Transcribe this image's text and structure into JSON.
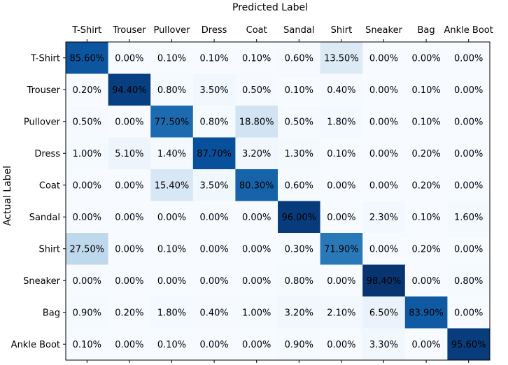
{
  "chart_data": {
    "type": "heatmap",
    "title": "Predicted Label",
    "xlabel": "Predicted Label",
    "ylabel": "Actual Label",
    "x_categories": [
      "T-Shirt",
      "Trouser",
      "Pullover",
      "Dress",
      "Coat",
      "Sandal",
      "Shirt",
      "Sneaker",
      "Bag",
      "Ankle Boot"
    ],
    "y_categories": [
      "T-Shirt",
      "Trouser",
      "Pullover",
      "Dress",
      "Coat",
      "Sandal",
      "Shirt",
      "Sneaker",
      "Bag",
      "Ankle Boot"
    ],
    "values": [
      [
        85.6,
        0.0,
        0.1,
        0.1,
        0.1,
        0.6,
        13.5,
        0.0,
        0.0,
        0.0
      ],
      [
        0.2,
        94.4,
        0.8,
        3.5,
        0.5,
        0.1,
        0.4,
        0.0,
        0.1,
        0.0
      ],
      [
        0.5,
        0.0,
        77.5,
        0.8,
        18.8,
        0.5,
        1.8,
        0.0,
        0.1,
        0.0
      ],
      [
        1.0,
        5.1,
        1.4,
        87.7,
        3.2,
        1.3,
        0.1,
        0.0,
        0.2,
        0.0
      ],
      [
        0.0,
        0.0,
        15.4,
        3.5,
        80.3,
        0.6,
        0.0,
        0.0,
        0.2,
        0.0
      ],
      [
        0.0,
        0.0,
        0.0,
        0.0,
        0.0,
        96.0,
        0.0,
        2.3,
        0.1,
        1.6
      ],
      [
        27.5,
        0.0,
        0.1,
        0.0,
        0.0,
        0.3,
        71.9,
        0.0,
        0.2,
        0.0
      ],
      [
        0.0,
        0.0,
        0.0,
        0.0,
        0.0,
        0.8,
        0.0,
        98.4,
        0.0,
        0.8
      ],
      [
        0.9,
        0.2,
        1.8,
        0.4,
        1.0,
        3.2,
        2.1,
        6.5,
        83.9,
        0.0
      ],
      [
        0.1,
        0.0,
        0.1,
        0.0,
        0.0,
        0.9,
        0.0,
        3.3,
        0.0,
        95.6
      ]
    ],
    "cell_labels": [
      [
        "85.60%",
        "0.00%",
        "0.10%",
        "0.10%",
        "0.10%",
        "0.60%",
        "13.50%",
        "0.00%",
        "0.00%",
        "0.00%"
      ],
      [
        "0.20%",
        "94.40%",
        "0.80%",
        "3.50%",
        "0.50%",
        "0.10%",
        "0.40%",
        "0.00%",
        "0.10%",
        "0.00%"
      ],
      [
        "0.50%",
        "0.00%",
        "77.50%",
        "0.80%",
        "18.80%",
        "0.50%",
        "1.80%",
        "0.00%",
        "0.10%",
        "0.00%"
      ],
      [
        "1.00%",
        "5.10%",
        "1.40%",
        "87.70%",
        "3.20%",
        "1.30%",
        "0.10%",
        "0.00%",
        "0.20%",
        "0.00%"
      ],
      [
        "0.00%",
        "0.00%",
        "15.40%",
        "3.50%",
        "80.30%",
        "0.60%",
        "0.00%",
        "0.00%",
        "0.20%",
        "0.00%"
      ],
      [
        "0.00%",
        "0.00%",
        "0.00%",
        "0.00%",
        "0.00%",
        "96.00%",
        "0.00%",
        "2.30%",
        "0.10%",
        "1.60%"
      ],
      [
        "27.50%",
        "0.00%",
        "0.10%",
        "0.00%",
        "0.00%",
        "0.30%",
        "71.90%",
        "0.00%",
        "0.20%",
        "0.00%"
      ],
      [
        "0.00%",
        "0.00%",
        "0.00%",
        "0.00%",
        "0.00%",
        "0.80%",
        "0.00%",
        "98.40%",
        "0.00%",
        "0.80%"
      ],
      [
        "0.90%",
        "0.20%",
        "1.80%",
        "0.40%",
        "1.00%",
        "3.20%",
        "2.10%",
        "6.50%",
        "83.90%",
        "0.00%"
      ],
      [
        "0.10%",
        "0.00%",
        "0.10%",
        "0.00%",
        "0.00%",
        "0.90%",
        "0.00%",
        "3.30%",
        "0.00%",
        "95.60%"
      ]
    ],
    "value_range": [
      0,
      100
    ],
    "colormap": "Blues",
    "colormap_stops": [
      "#f7fbff",
      "#deebf7",
      "#c6dbef",
      "#9ecae1",
      "#6baed6",
      "#4292c6",
      "#2171b5",
      "#08519c",
      "#08306b"
    ],
    "x_ticks_position": "top",
    "grid": false
  }
}
